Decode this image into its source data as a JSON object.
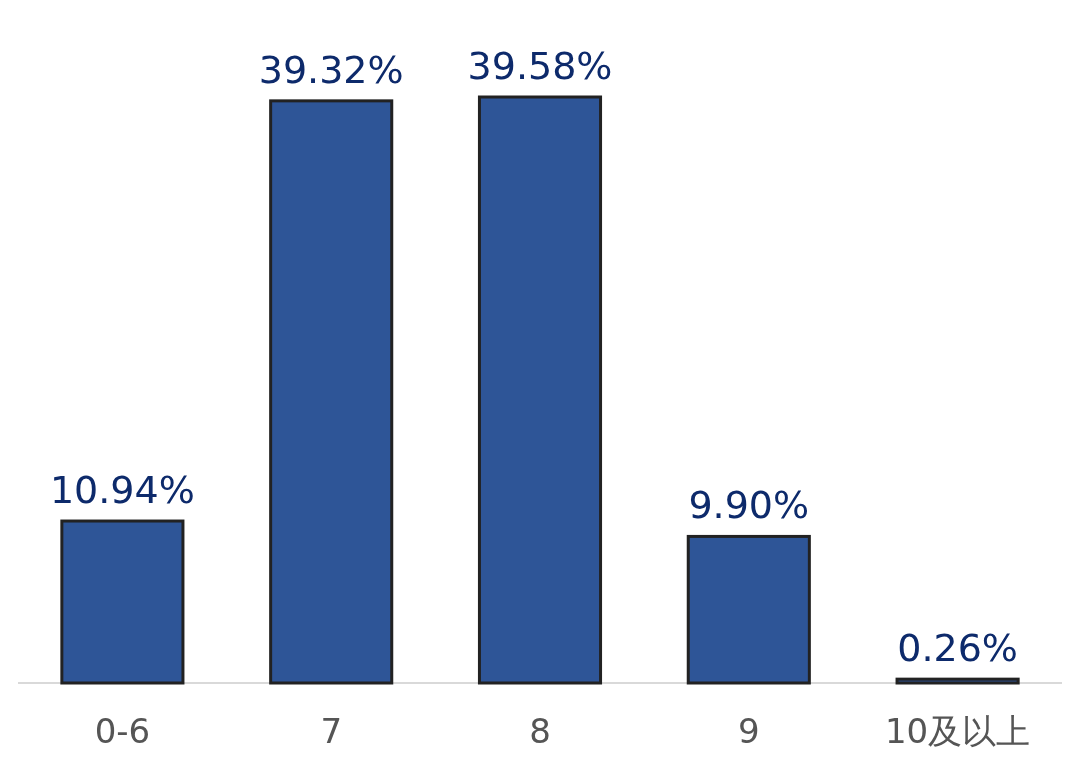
{
  "chart_data": {
    "type": "bar",
    "categories": [
      "0-6",
      "7",
      "8",
      "9",
      "10及以上"
    ],
    "values": [
      10.94,
      39.32,
      39.58,
      9.9,
      0.26
    ],
    "value_labels": [
      "10.94%",
      "39.32%",
      "39.58%",
      "9.90%",
      "0.26%"
    ],
    "color": "#2e5597"
  }
}
